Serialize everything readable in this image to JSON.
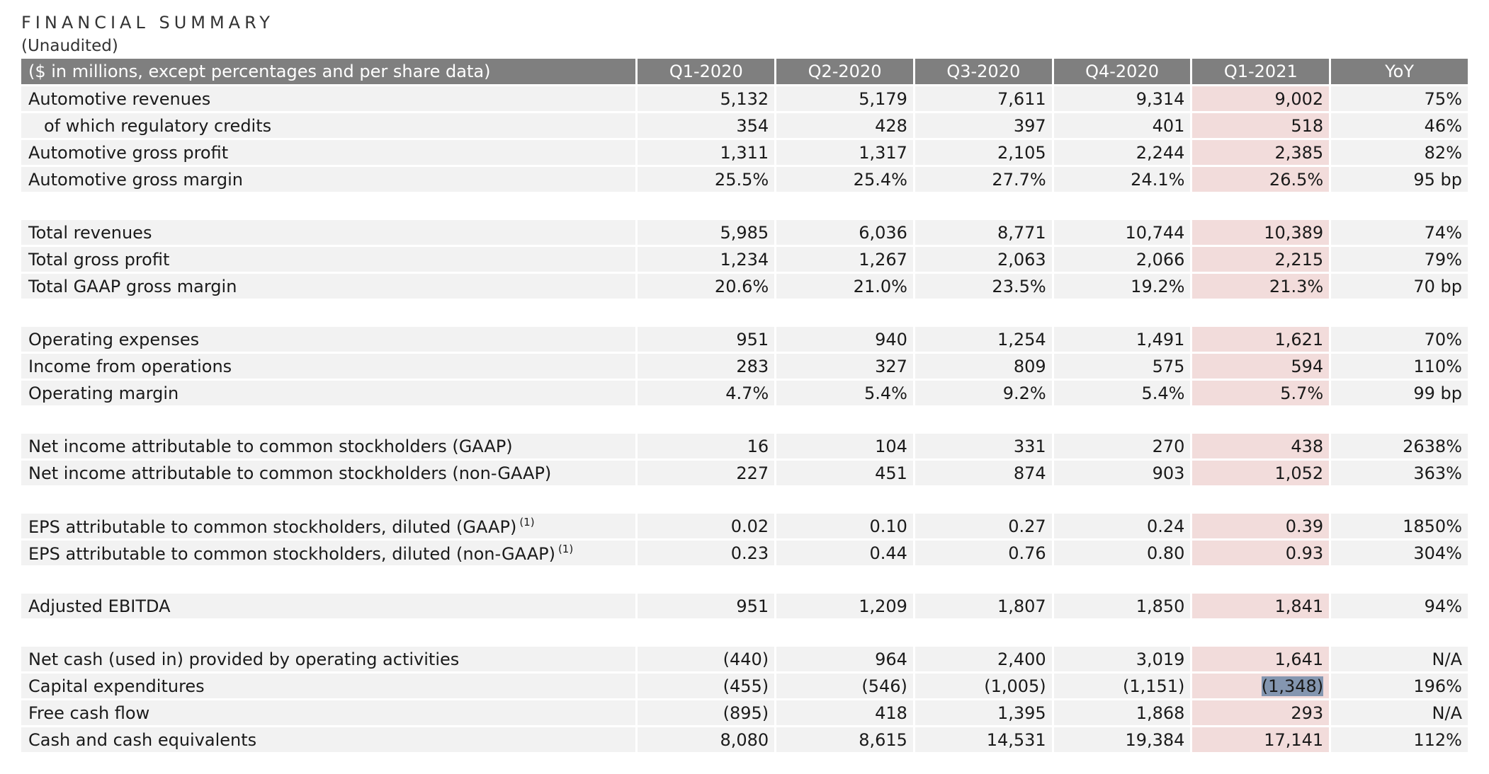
{
  "title": "FINANCIAL SUMMARY",
  "subtitle": "(Unaudited)",
  "header": {
    "label": "($ in millions, except percentages and per share data)",
    "columns": [
      "Q1-2020",
      "Q2-2020",
      "Q3-2020",
      "Q4-2020",
      "Q1-2021",
      "YoY"
    ]
  },
  "highlight_color": "#f2dcdb",
  "header_color": "#7f7f7f",
  "row_color": "#f2f2f2",
  "groups": [
    {
      "rows": [
        {
          "label": "Automotive revenues",
          "values": [
            "5,132",
            "5,179",
            "7,611",
            "9,314",
            "9,002",
            "75%"
          ]
        },
        {
          "label": "of which regulatory credits",
          "indent": true,
          "values": [
            "354",
            "428",
            "397",
            "401",
            "518",
            "46%"
          ]
        },
        {
          "label": "Automotive gross profit",
          "values": [
            "1,311",
            "1,317",
            "2,105",
            "2,244",
            "2,385",
            "82%"
          ]
        },
        {
          "label": "Automotive gross margin",
          "values": [
            "25.5%",
            "25.4%",
            "27.7%",
            "24.1%",
            "26.5%",
            "95 bp"
          ]
        }
      ]
    },
    {
      "rows": [
        {
          "label": "Total revenues",
          "values": [
            "5,985",
            "6,036",
            "8,771",
            "10,744",
            "10,389",
            "74%"
          ]
        },
        {
          "label": "Total gross profit",
          "values": [
            "1,234",
            "1,267",
            "2,063",
            "2,066",
            "2,215",
            "79%"
          ]
        },
        {
          "label": "Total GAAP gross margin",
          "values": [
            "20.6%",
            "21.0%",
            "23.5%",
            "19.2%",
            "21.3%",
            "70 bp"
          ]
        }
      ]
    },
    {
      "rows": [
        {
          "label": "Operating expenses",
          "values": [
            "951",
            "940",
            "1,254",
            "1,491",
            "1,621",
            "70%"
          ]
        },
        {
          "label": "Income from operations",
          "values": [
            "283",
            "327",
            "809",
            "575",
            "594",
            "110%"
          ]
        },
        {
          "label": "Operating margin",
          "values": [
            "4.7%",
            "5.4%",
            "9.2%",
            "5.4%",
            "5.7%",
            "99 bp"
          ]
        }
      ]
    },
    {
      "rows": [
        {
          "label": "Net income attributable to common stockholders (GAAP)",
          "values": [
            "16",
            "104",
            "331",
            "270",
            "438",
            "2638%"
          ]
        },
        {
          "label": "Net income attributable to common stockholders (non-GAAP)",
          "values": [
            "227",
            "451",
            "874",
            "903",
            "1,052",
            "363%"
          ]
        }
      ]
    },
    {
      "rows": [
        {
          "label": "EPS attributable to common stockholders, diluted (GAAP)",
          "footnote": "(1)",
          "values": [
            "0.02",
            "0.10",
            "0.27",
            "0.24",
            "0.39",
            "1850%"
          ]
        },
        {
          "label": "EPS attributable to common stockholders, diluted (non-GAAP)",
          "footnote": "(1)",
          "values": [
            "0.23",
            "0.44",
            "0.76",
            "0.80",
            "0.93",
            "304%"
          ]
        }
      ]
    },
    {
      "rows": [
        {
          "label": "Adjusted EBITDA",
          "values": [
            "951",
            "1,209",
            "1,807",
            "1,850",
            "1,841",
            "94%"
          ]
        }
      ]
    },
    {
      "rows": [
        {
          "label": "Net cash (used in) provided by operating activities",
          "values": [
            "(440)",
            "964",
            "2,400",
            "3,019",
            "1,641",
            "N/A"
          ]
        },
        {
          "label": "Capital expenditures",
          "selected_col": 4,
          "values": [
            "(455)",
            "(546)",
            "(1,005)",
            "(1,151)",
            "(1,348)",
            "196%"
          ]
        },
        {
          "label": "Free cash flow",
          "values": [
            "(895)",
            "418",
            "1,395",
            "1,868",
            "293",
            "N/A"
          ]
        },
        {
          "label": "Cash and cash equivalents",
          "values": [
            "8,080",
            "8,615",
            "14,531",
            "19,384",
            "17,141",
            "112%"
          ]
        }
      ]
    }
  ]
}
